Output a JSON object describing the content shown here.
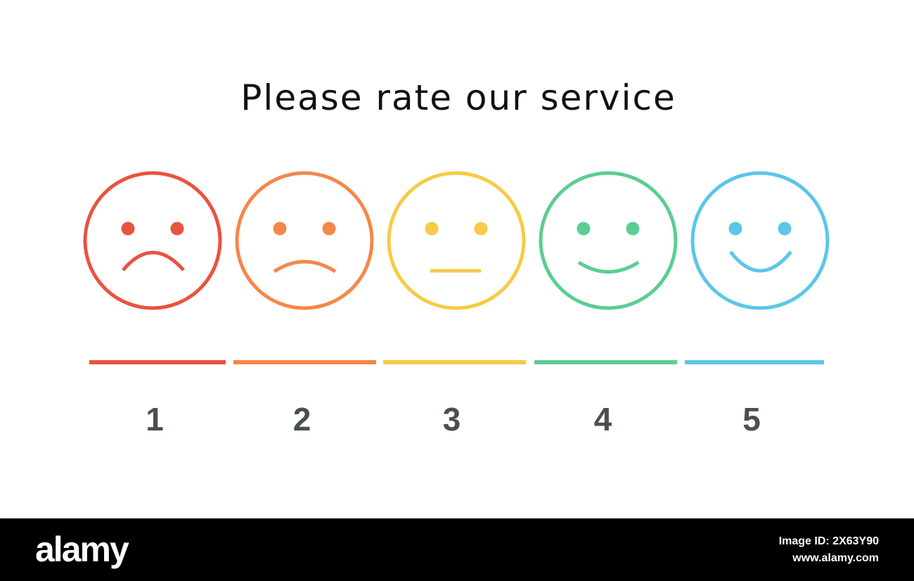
{
  "title": "Please rate our service",
  "ratings": [
    {
      "label": "1"
    },
    {
      "label": "2"
    },
    {
      "label": "3"
    },
    {
      "label": "4"
    },
    {
      "label": "5"
    }
  ],
  "footer": {
    "brand": "alamy",
    "image_id": "Image ID: 2X63Y90",
    "url": "www.alamy.com"
  }
}
